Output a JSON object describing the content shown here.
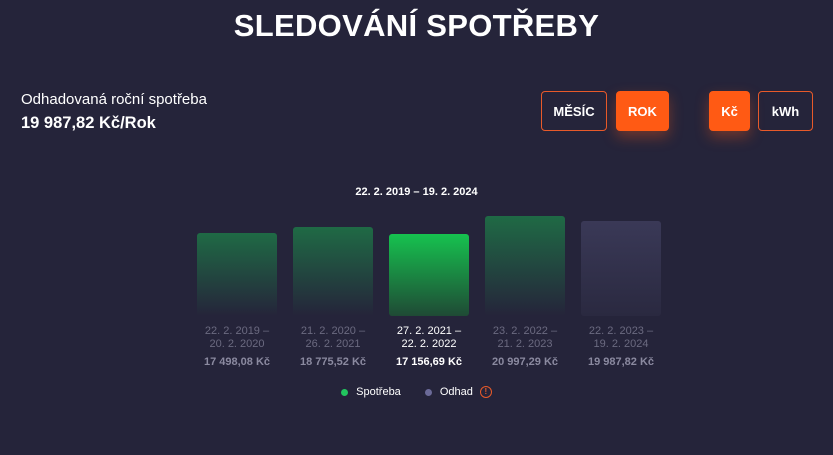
{
  "title": "SLEDOVÁNÍ SPOTŘEBY",
  "estimate": {
    "label": "Odhadovaná roční spotřeba",
    "value": "19 987,82 Kč/Rok"
  },
  "period_toggle": {
    "month_label": "MĚSÍC",
    "year_label": "ROK",
    "selected": "ROK"
  },
  "unit_toggle": {
    "czk_label": "Kč",
    "kwh_label": "kWh",
    "selected": "Kč"
  },
  "range_label": "22. 2. 2019 – 19. 2. 2024",
  "legend": {
    "consumption_label": "Spotřeba",
    "estimate_label": "Odhad",
    "consumption_color": "#22c55e",
    "estimate_color": "#6b6a98",
    "info_icon": "info-circle-icon"
  },
  "colors": {
    "background": "#25243a",
    "accent": "#ff5a14",
    "bar_green": "#1f6a45",
    "bar_highlight": "#16c24f",
    "bar_estimate": "#3a3957"
  },
  "chart_data": {
    "type": "bar",
    "categories": [
      "22. 2. 2019 – 20. 2. 2020",
      "21. 2. 2020 – 26. 2. 2021",
      "27. 2. 2021 – 22. 2. 2022",
      "23. 2. 2022 – 21. 2. 2023",
      "22. 2. 2023 – 19. 2. 2024"
    ],
    "category_lines": [
      [
        "22. 2. 2019 –",
        "20. 2. 2020"
      ],
      [
        "21. 2. 2020 –",
        "26. 2. 2021"
      ],
      [
        "27. 2. 2021 –",
        "22. 2. 2022"
      ],
      [
        "23. 2. 2022 –",
        "21. 2. 2023"
      ],
      [
        "22. 2. 2023 –",
        "19. 2. 2024"
      ]
    ],
    "values": [
      17498.08,
      18775.52,
      17156.69,
      20997.29,
      19987.82
    ],
    "value_labels": [
      "17 498,08 Kč",
      "18 775,52 Kč",
      "17 156,69 Kč",
      "20 997,29 Kč",
      "19 987,82 Kč"
    ],
    "kinds": [
      "consumption",
      "consumption",
      "consumption",
      "consumption",
      "estimate"
    ],
    "selected_index": 2,
    "ylim": [
      0,
      21000
    ],
    "grid": false,
    "legend_position": "bottom"
  }
}
